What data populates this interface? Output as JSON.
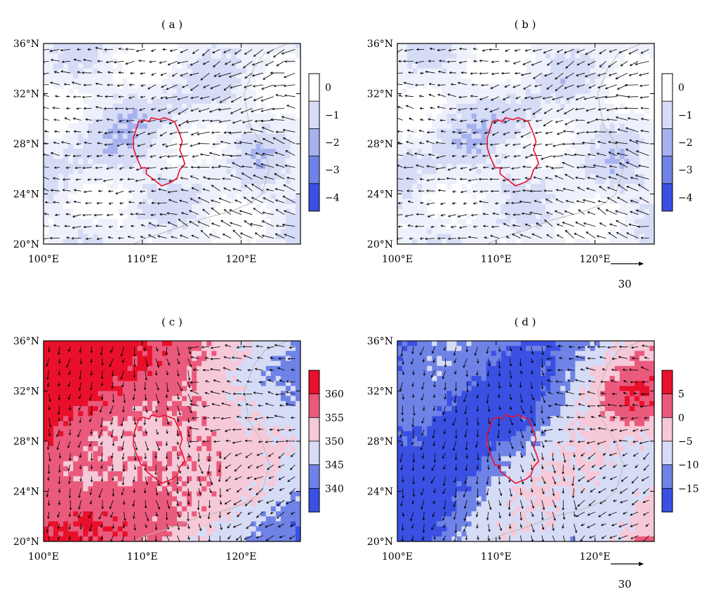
{
  "figure": {
    "panels": [
      {
        "id": "a",
        "label": "( a )",
        "x_ticks": [
          "100°E",
          "110°E",
          "120°E"
        ],
        "y_ticks": [
          "36°N",
          "32°N",
          "28°N",
          "24°N",
          "20°N"
        ],
        "colorbar": {
          "labels": [
            "0",
            "−1",
            "−2",
            "−3",
            "−4"
          ],
          "colors": [
            "#ffffff",
            "#d6dcf6",
            "#a6b2ee",
            "#6f82e6",
            "#3a50e2"
          ]
        },
        "show_reference_vector": false
      },
      {
        "id": "b",
        "label": "( b )",
        "x_ticks": [
          "100°E",
          "110°E",
          "120°E"
        ],
        "y_ticks": [
          "36°N",
          "32°N",
          "28°N",
          "24°N",
          "20°N"
        ],
        "colorbar": {
          "labels": [
            "0",
            "−1",
            "−2",
            "−3",
            "−4"
          ],
          "colors": [
            "#ffffff",
            "#d6dcf6",
            "#a6b2ee",
            "#6f82e6",
            "#3a50e2"
          ]
        },
        "show_reference_vector": true,
        "reference_vector_label": "30"
      },
      {
        "id": "c",
        "label": "( c )",
        "x_ticks": [
          "100°E",
          "110°E",
          "120°E"
        ],
        "y_ticks": [
          "36°N",
          "32°N",
          "28°N",
          "24°N",
          "20°N"
        ],
        "colorbar": {
          "labels": [
            "360",
            "355",
            "350",
            "345",
            "340"
          ],
          "colors": [
            "#e8102a",
            "#ea5a7c",
            "#f6c9d8",
            "#d6dcf6",
            "#6f82e6",
            "#3a50e2"
          ]
        },
        "show_reference_vector": false
      },
      {
        "id": "d",
        "label": "( d )",
        "x_ticks": [
          "100°E",
          "110°E",
          "120°E"
        ],
        "y_ticks": [
          "36°N",
          "32°N",
          "28°N",
          "24°N",
          "20°N"
        ],
        "colorbar": {
          "labels": [
            "5",
            "0",
            "−5",
            "−10",
            "−15"
          ],
          "colors": [
            "#e8102a",
            "#ea5a7c",
            "#f6c9d8",
            "#d6dcf6",
            "#6f82e6",
            "#3a50e2"
          ]
        },
        "show_reference_vector": true,
        "reference_vector_label": "30"
      }
    ]
  },
  "chart_data": [
    {
      "type": "heatmap",
      "panel": "a",
      "title": "( a )",
      "x_range": [
        100,
        126
      ],
      "y_range": [
        20,
        36
      ],
      "x_ticks": [
        100,
        110,
        120
      ],
      "y_ticks": [
        20,
        24,
        28,
        32,
        36
      ],
      "colorbar_levels": [
        0,
        -1,
        -2,
        -3,
        -4
      ],
      "overlay": "wind vectors"
    },
    {
      "type": "heatmap",
      "panel": "b",
      "title": "( b )",
      "x_range": [
        100,
        126
      ],
      "y_range": [
        20,
        36
      ],
      "x_ticks": [
        100,
        110,
        120
      ],
      "y_ticks": [
        20,
        24,
        28,
        32,
        36
      ],
      "colorbar_levels": [
        0,
        -1,
        -2,
        -3,
        -4
      ],
      "overlay": "wind vectors",
      "reference_vector": 30
    },
    {
      "type": "heatmap",
      "panel": "c",
      "title": "( c )",
      "x_range": [
        100,
        126
      ],
      "y_range": [
        20,
        36
      ],
      "x_ticks": [
        100,
        110,
        120
      ],
      "y_ticks": [
        20,
        24,
        28,
        32,
        36
      ],
      "colorbar_levels": [
        360,
        355,
        350,
        345,
        340
      ],
      "overlay": "wind vectors"
    },
    {
      "type": "heatmap",
      "panel": "d",
      "title": "( d )",
      "x_range": [
        100,
        126
      ],
      "y_range": [
        20,
        36
      ],
      "x_ticks": [
        100,
        110,
        120
      ],
      "y_ticks": [
        20,
        24,
        28,
        32,
        36
      ],
      "colorbar_levels": [
        5,
        0,
        -5,
        -10,
        -15
      ],
      "overlay": "wind vectors",
      "reference_vector": 30
    }
  ]
}
